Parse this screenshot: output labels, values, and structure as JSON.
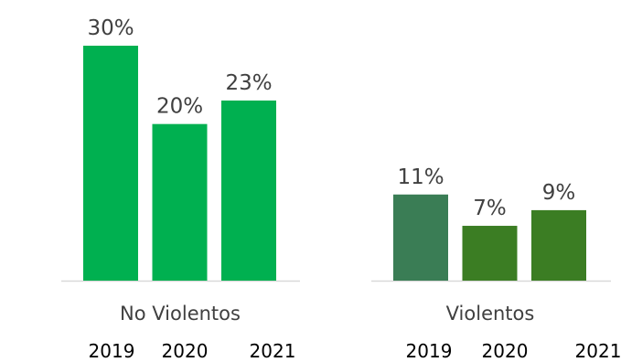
{
  "chart_data": {
    "type": "bar",
    "ylim": [
      0,
      30
    ],
    "grid": false,
    "groups": [
      {
        "label": "No Violentos",
        "bars": [
          {
            "year": "2019",
            "value": 30,
            "label": "30%",
            "color": "#00b050"
          },
          {
            "year": "2020",
            "value": 20,
            "label": "20%",
            "color": "#00b050"
          },
          {
            "year": "2021",
            "value": 23,
            "label": "23%",
            "color": "#00b050"
          }
        ]
      },
      {
        "label": "Violentos",
        "bars": [
          {
            "year": "2019",
            "value": 11,
            "label": "11%",
            "color": "#3a7d55"
          },
          {
            "year": "2020",
            "value": 7,
            "label": "7%",
            "color": "#3b7d23"
          },
          {
            "year": "2021",
            "value": 9,
            "label": "9%",
            "color": "#3b7d23"
          }
        ]
      }
    ]
  },
  "colors": {
    "axis": "#d9d9d9",
    "label_text": "#404040",
    "year_text": "#000000"
  }
}
